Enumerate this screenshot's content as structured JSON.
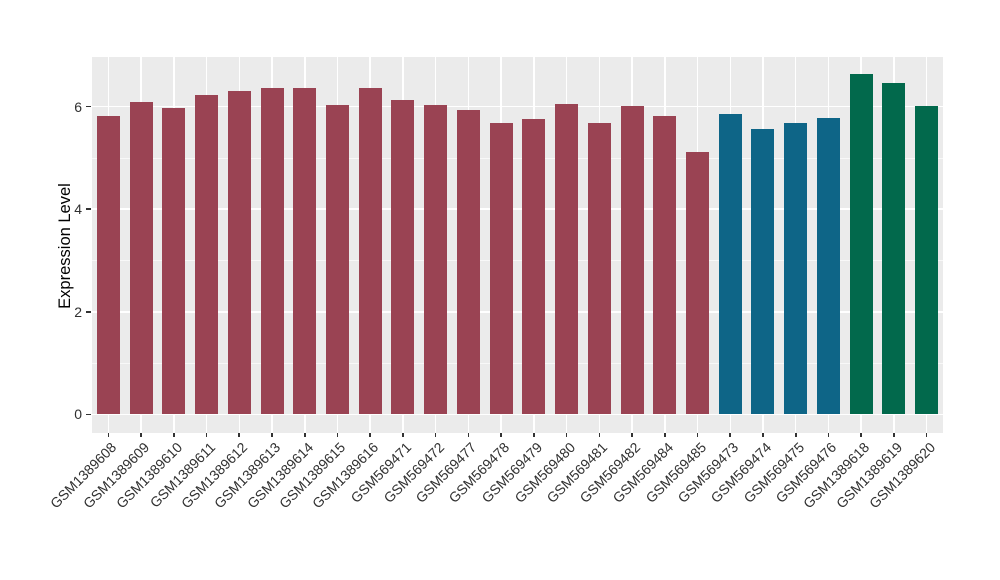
{
  "chart_data": {
    "type": "bar",
    "title": "",
    "xlabel": "",
    "ylabel": "Expression Level",
    "categories": [
      "GSM1389608",
      "GSM1389609",
      "GSM1389610",
      "GSM1389611",
      "GSM1389612",
      "GSM1389613",
      "GSM1389614",
      "GSM1389615",
      "GSM1389616",
      "GSM569471",
      "GSM569472",
      "GSM569477",
      "GSM569478",
      "GSM569479",
      "GSM569480",
      "GSM569481",
      "GSM569482",
      "GSM569484",
      "GSM569485",
      "GSM569473",
      "GSM569474",
      "GSM569475",
      "GSM569476",
      "GSM1389618",
      "GSM1389619",
      "GSM1389620"
    ],
    "values": [
      5.82,
      6.09,
      5.98,
      6.23,
      6.31,
      6.37,
      6.36,
      6.03,
      6.37,
      6.14,
      6.04,
      5.93,
      5.68,
      5.75,
      6.05,
      5.68,
      6.01,
      5.82,
      5.12,
      5.86,
      5.56,
      5.69,
      5.78,
      6.64,
      6.47,
      6.02
    ],
    "groups": [
      "maroon",
      "maroon",
      "maroon",
      "maroon",
      "maroon",
      "maroon",
      "maroon",
      "maroon",
      "maroon",
      "maroon",
      "maroon",
      "maroon",
      "maroon",
      "maroon",
      "maroon",
      "maroon",
      "maroon",
      "maroon",
      "maroon",
      "blue",
      "blue",
      "blue",
      "blue",
      "green",
      "green",
      "green"
    ],
    "group_colors": {
      "maroon": "#9A4353",
      "blue": "#0E6587",
      "green": "#02694C"
    },
    "yticks": [
      0,
      2,
      4,
      6
    ],
    "yticks_minor": [
      1,
      3,
      5
    ],
    "ylim": [
      -0.37,
      6.97
    ],
    "grid": true,
    "legend": "none",
    "panel_bg": "#EBEBEB",
    "grid_color": "#FFFFFF",
    "tick_color": "#333333",
    "axis_text_color": "#303030"
  }
}
